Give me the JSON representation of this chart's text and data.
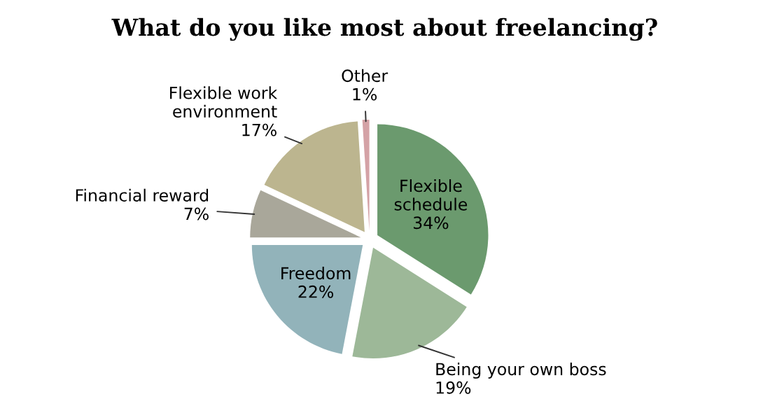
{
  "chart_data": {
    "type": "pie",
    "title": "What do you like most about freelancing?",
    "categories": [
      "Flexible\nschedule",
      "Being your own boss",
      "Freedom",
      "Financial reward",
      "Flexible work\nenvironment",
      "Other"
    ],
    "values": [
      34,
      19,
      22,
      7,
      17,
      1
    ],
    "value_labels": [
      "34%",
      "19%",
      "22%",
      "7%",
      "17%",
      "1%"
    ],
    "colors": [
      "#6b9a6e",
      "#9db898",
      "#92b3ba",
      "#a9a79a",
      "#bcb58f",
      "#d4a2a6"
    ]
  }
}
